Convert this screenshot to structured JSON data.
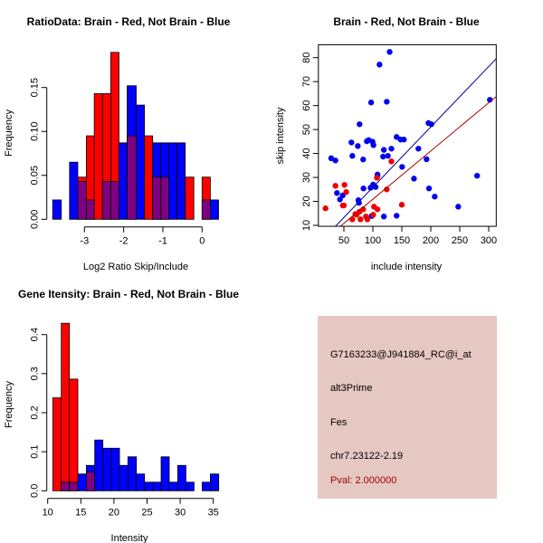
{
  "chart_data": [
    {
      "type": "bar",
      "subtype": "overlaid-histogram",
      "title": "RatioData: Brain - Red, Not Brain - Blue",
      "xlabel": "Log2 Ratio Skip/Include",
      "ylabel": "Frequency",
      "xticks": [
        "-3",
        "-2",
        "-1",
        "0"
      ],
      "xtick_values": [
        -3,
        -2,
        -1,
        0
      ],
      "yticks": [
        "0.00",
        "0.05",
        "0.10",
        "0.15"
      ],
      "ytick_values": [
        0,
        0.05,
        0.1,
        0.15
      ],
      "breaks": [
        -3.81,
        -3.59,
        -3.38,
        -3.17,
        -2.95,
        -2.75,
        -2.54,
        -2.33,
        -2.12,
        -1.91,
        -1.68,
        -1.47,
        -1.26,
        -1.05,
        -0.85,
        -0.64,
        -0.43,
        -0.21,
        0,
        0.21,
        0.42
      ],
      "series": [
        {
          "name": "Brain",
          "color": "#ff0000",
          "values": [
            0,
            0,
            0,
            0.048,
            0.095,
            0.143,
            0.143,
            0.19,
            0,
            0.095,
            0,
            0.095,
            0.048,
            0.048,
            0,
            0,
            0.048,
            0,
            0.048,
            0
          ]
        },
        {
          "name": "Not Brain",
          "color": "#0000ff",
          "values": [
            0.022,
            0,
            0.065,
            0.043,
            0.022,
            0,
            0.043,
            0.043,
            0.087,
            0.152,
            0.13,
            0,
            0.087,
            0.087,
            0.087,
            0.087,
            0,
            0,
            0.022,
            0.022
          ]
        }
      ],
      "overlap_color": "#7f0080"
    },
    {
      "type": "scatter",
      "title": "Brain - Red, Not Brain - Blue",
      "xlabel": "include intensity",
      "ylabel": "skip intensity",
      "xticks": [
        "50",
        "100",
        "150",
        "200",
        "250",
        "300"
      ],
      "xtick_values": [
        50,
        100,
        150,
        200,
        250,
        300
      ],
      "yticks": [
        "10",
        "20",
        "30",
        "40",
        "50",
        "60",
        "70",
        "80"
      ],
      "ytick_values": [
        10,
        20,
        30,
        40,
        50,
        60,
        70,
        80
      ],
      "xlim": [
        6,
        313
      ],
      "ylim": [
        9.6,
        85.4
      ],
      "series": [
        {
          "name": "Not Brain",
          "color": "#0000ee",
          "points": [
            [
              28,
              38.0
            ],
            [
              35.4,
              37.1
            ],
            [
              38,
              23.5
            ],
            [
              43.2,
              20.8
            ],
            [
              48,
              22.5
            ],
            [
              63,
              44.6
            ],
            [
              64.6,
              39
            ],
            [
              74,
              43.1
            ],
            [
              77,
              52.2
            ],
            [
              75,
              20.5
            ],
            [
              76,
              19.4
            ],
            [
              83.3,
              37.5
            ],
            [
              83.8,
              25.4
            ],
            [
              89.6,
              45.1
            ],
            [
              92.7,
              45.6
            ],
            [
              97,
              61.3
            ],
            [
              96,
              25.7
            ],
            [
              98,
              13.9
            ],
            [
              99.5,
              44.9
            ],
            [
              101,
              43.5
            ],
            [
              100.5,
              27
            ],
            [
              104.7,
              26
            ],
            [
              108,
              31.2
            ],
            [
              108,
              30.7
            ],
            [
              111.5,
              77.1
            ],
            [
              117.7,
              38.7
            ],
            [
              119,
              41.5
            ],
            [
              119,
              13.7
            ],
            [
              124,
              61.6
            ],
            [
              126,
              39
            ],
            [
              129,
              82.4
            ],
            [
              132,
              42
            ],
            [
              141,
              46.9
            ],
            [
              141,
              14
            ],
            [
              148,
              45.8
            ],
            [
              153.6,
              45.8
            ],
            [
              150.5,
              34.4
            ],
            [
              171,
              29.5
            ],
            [
              178.6,
              42
            ],
            [
              192.7,
              37.6
            ],
            [
              196,
              52.7
            ],
            [
              201,
              52.2
            ],
            [
              197,
              25.4
            ],
            [
              206.8,
              22
            ],
            [
              247.4,
              17.8
            ],
            [
              280,
              30.7
            ],
            [
              302,
              62.4
            ]
          ],
          "fit": {
            "slope": 0.252,
            "intercept": 0.68,
            "color": "#000099"
          }
        },
        {
          "name": "Brain",
          "color": "#ee0000",
          "points": [
            [
              18.2,
              17.1
            ],
            [
              35.4,
              26.5
            ],
            [
              51,
              26.9
            ],
            [
              48,
              18.3
            ],
            [
              50,
              18.3
            ],
            [
              54,
              23.9
            ],
            [
              64.6,
              12.5
            ],
            [
              69.8,
              14.7
            ],
            [
              72,
              14.5
            ],
            [
              77,
              15.7
            ],
            [
              78.6,
              12.5
            ],
            [
              83.3,
              16.7
            ],
            [
              88,
              13.7
            ],
            [
              90.6,
              12.5
            ],
            [
              100.5,
              14.4
            ],
            [
              102,
              17.8
            ],
            [
              107,
              29.9
            ],
            [
              108,
              16.7
            ],
            [
              124,
              25
            ],
            [
              132,
              36.7
            ],
            [
              150,
              18.6
            ]
          ],
          "fit": {
            "slope": 0.2013,
            "intercept": 0.78,
            "color": "#aa0000"
          }
        }
      ]
    },
    {
      "type": "bar",
      "subtype": "overlaid-histogram",
      "title": "Gene Itensity: Brain - Red, Not Brain - Blue",
      "xlabel": "Intensity",
      "ylabel": "Frequency",
      "xticks": [
        "10",
        "15",
        "20",
        "25",
        "30",
        "35"
      ],
      "xtick_values": [
        10,
        15,
        20,
        25,
        30,
        35
      ],
      "yticks": [
        "0.0",
        "0.1",
        "0.2",
        "0.3",
        "0.4"
      ],
      "ytick_values": [
        0,
        0.1,
        0.2,
        0.3,
        0.4
      ],
      "breaks": [
        10.77,
        12.05,
        13.28,
        14.55,
        15.83,
        17.1,
        18.33,
        19.6,
        20.84,
        22.11,
        23.39,
        24.62,
        25.89,
        27.12,
        28.35,
        29.63,
        30.86,
        32.09,
        33.32,
        34.55,
        35.82
      ],
      "series": [
        {
          "name": "Brain",
          "color": "#ff0000",
          "values": [
            0.238,
            0.429,
            0.286,
            0,
            0.048,
            0,
            0,
            0,
            0,
            0,
            0,
            0,
            0,
            0,
            0,
            0,
            0,
            0,
            0,
            0
          ]
        },
        {
          "name": "Not Brain",
          "color": "#0000ff",
          "values": [
            0,
            0.022,
            0.022,
            0.043,
            0.065,
            0.13,
            0.109,
            0.109,
            0.065,
            0.087,
            0.043,
            0.022,
            0.022,
            0.087,
            0.022,
            0.065,
            0.022,
            0,
            0.022,
            0.043
          ]
        }
      ],
      "overlap_color": "#7f0080"
    }
  ],
  "info": {
    "probe": "G7163233@J941884_RC@i_at",
    "event_type": "alt3Prime",
    "gene": "Fes",
    "location": "chr7.23122-2.19",
    "pval": "Pval: 2.000000"
  }
}
